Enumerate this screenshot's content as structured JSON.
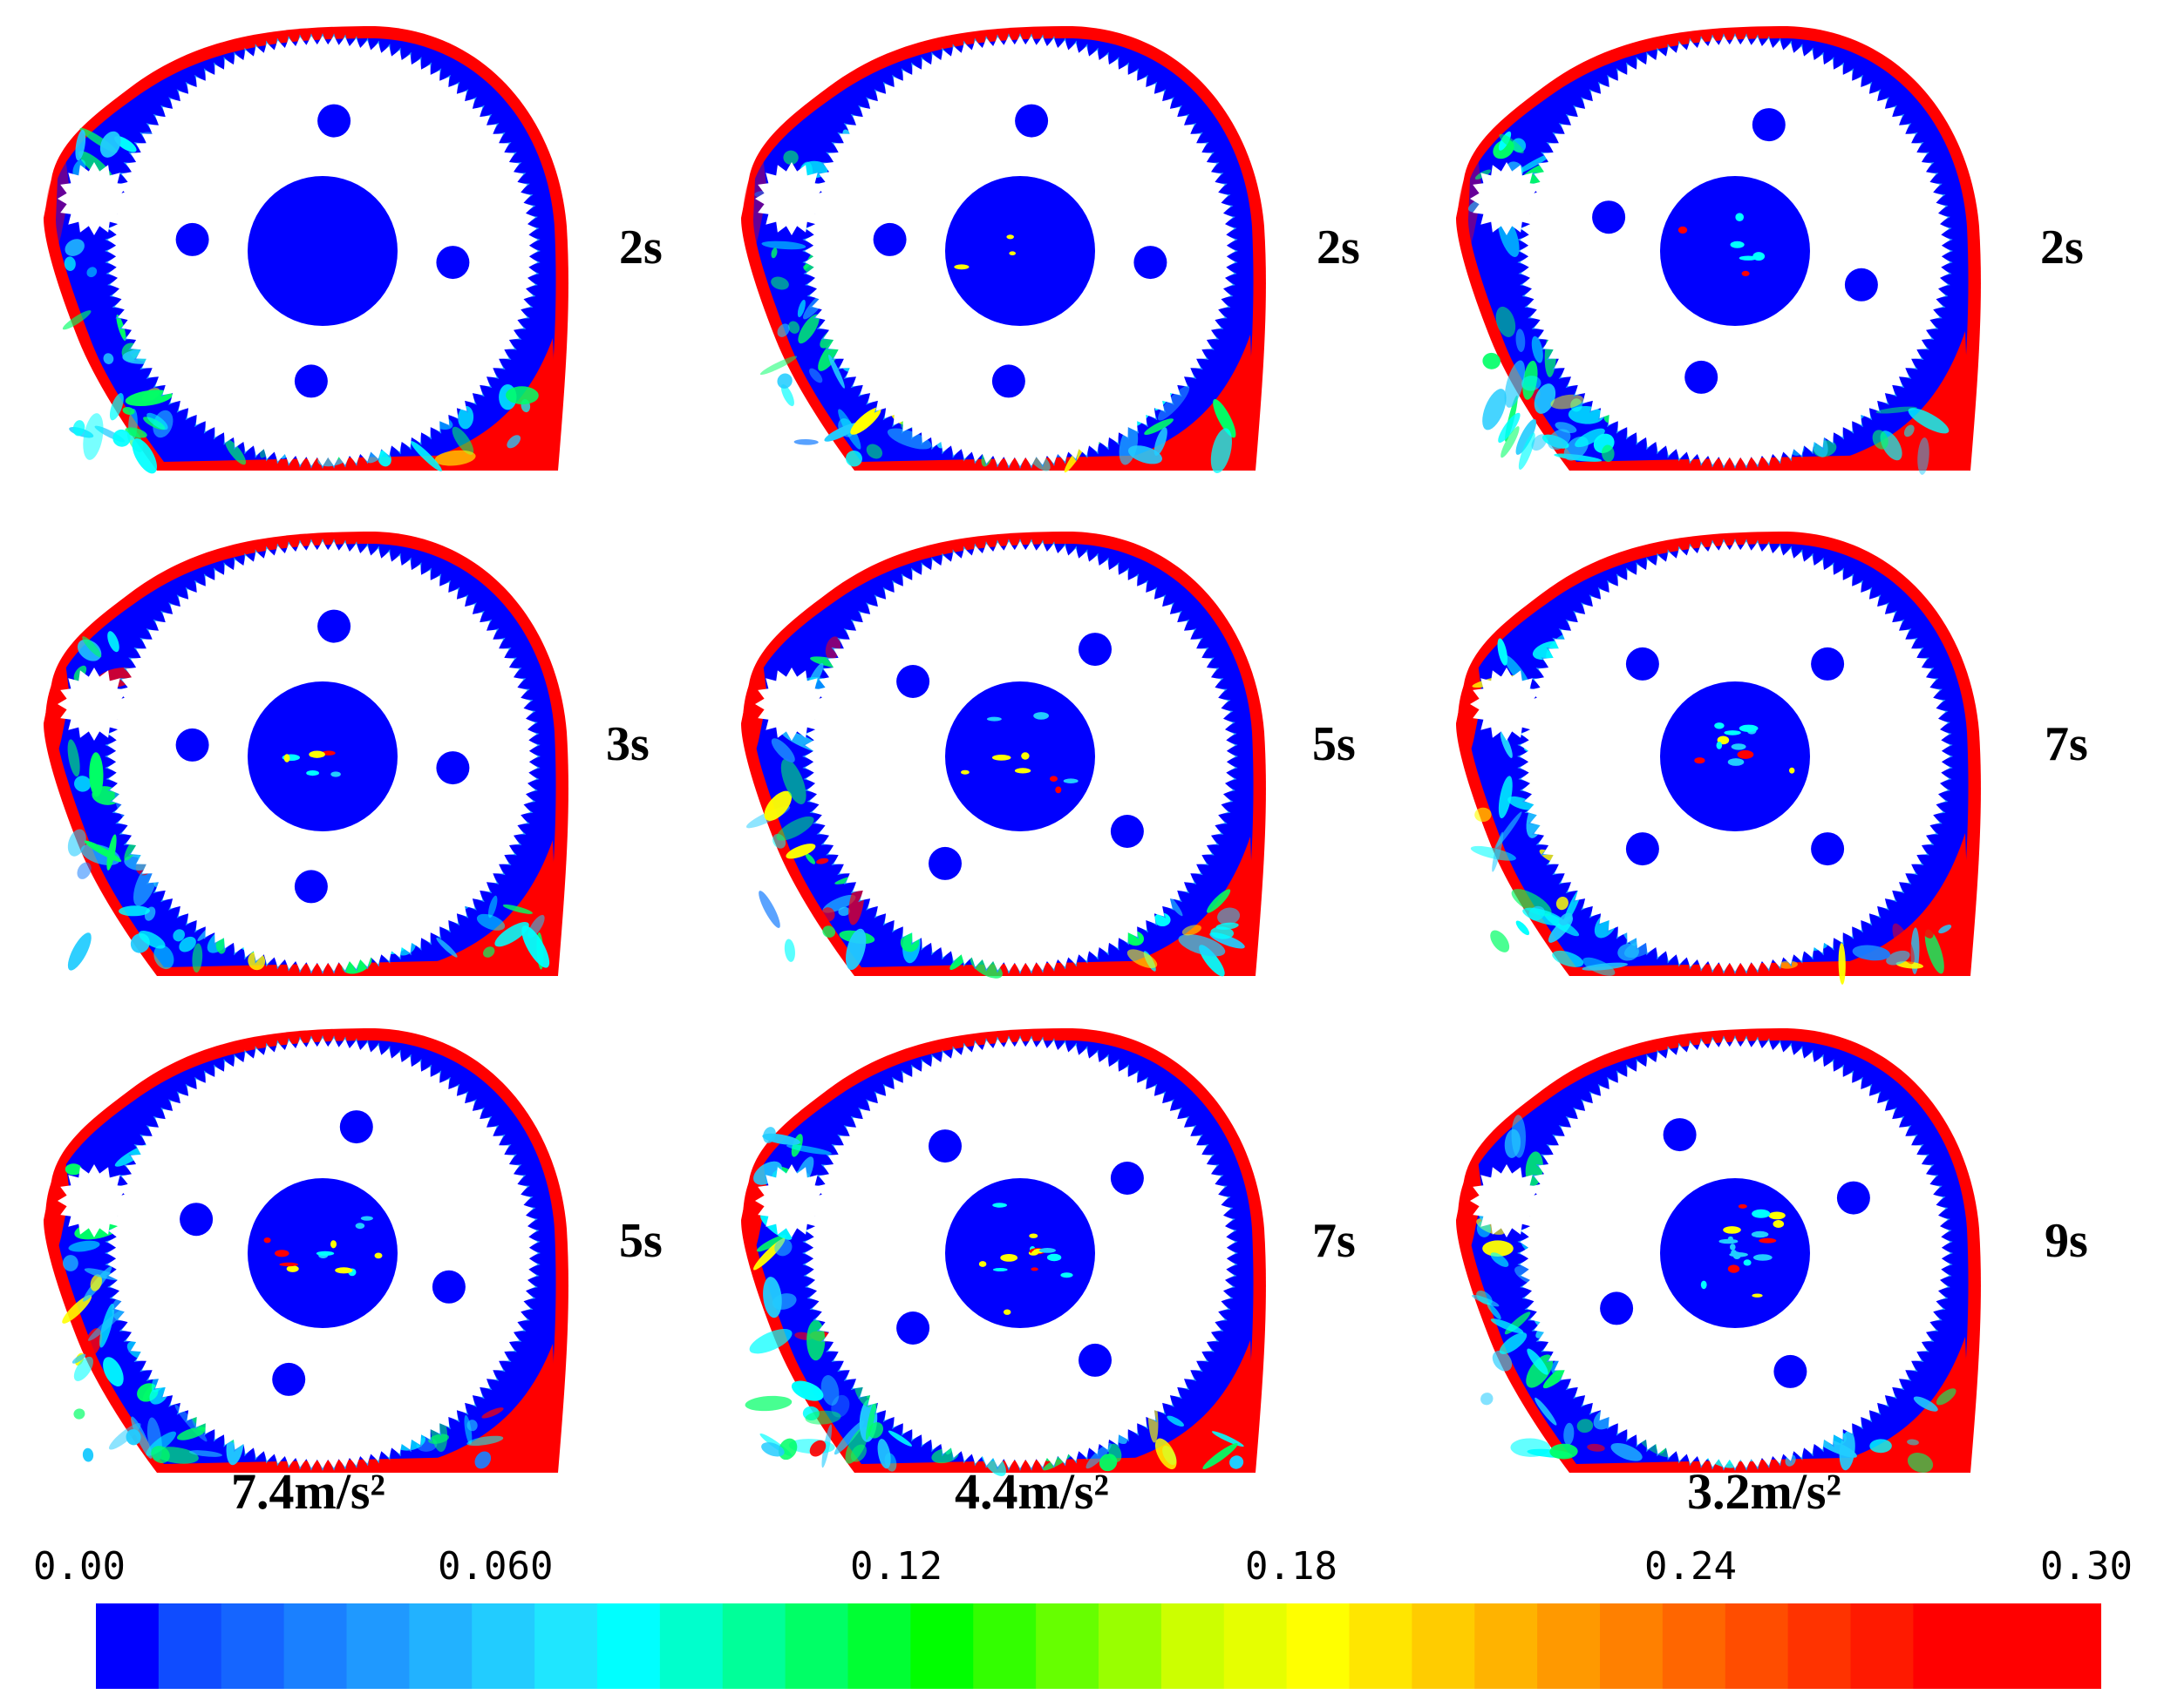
{
  "figure": {
    "columns": [
      {
        "acceleration_label": "7.4m/s²",
        "times": [
          "2s",
          "3s",
          "5s"
        ]
      },
      {
        "acceleration_label": "4.4m/s²",
        "times": [
          "2s",
          "5s",
          "7s"
        ]
      },
      {
        "acceleration_label": "3.2m/s²",
        "times": [
          "2s",
          "7s",
          "9s"
        ]
      }
    ]
  },
  "colorbar": {
    "ticks": [
      "0.00",
      "0.060",
      "0.12",
      "0.18",
      "0.24",
      "0.30"
    ],
    "min": 0.0,
    "max": 0.3,
    "colors": [
      "#0000ff",
      "#0f4cff",
      "#1565ff",
      "#1a80ff",
      "#1f99ff",
      "#22b2ff",
      "#22ccff",
      "#1fe6ff",
      "#00ffff",
      "#00ffcc",
      "#00ff99",
      "#00ff66",
      "#00ff33",
      "#00ff00",
      "#33ff00",
      "#66ff00",
      "#99ff00",
      "#ccff00",
      "#e6ff00",
      "#ffff00",
      "#ffe600",
      "#ffcc00",
      "#ffb300",
      "#ff9900",
      "#ff8000",
      "#ff6600",
      "#ff4d00",
      "#ff3300",
      "#ff1a00",
      "#ff0000",
      "#ff0000",
      "#ff0000"
    ]
  },
  "colors": {
    "oil_low": "#0000ff",
    "oil_high": "#ff0000",
    "mid": "#00ffcc",
    "gear": "#ffffff"
  }
}
